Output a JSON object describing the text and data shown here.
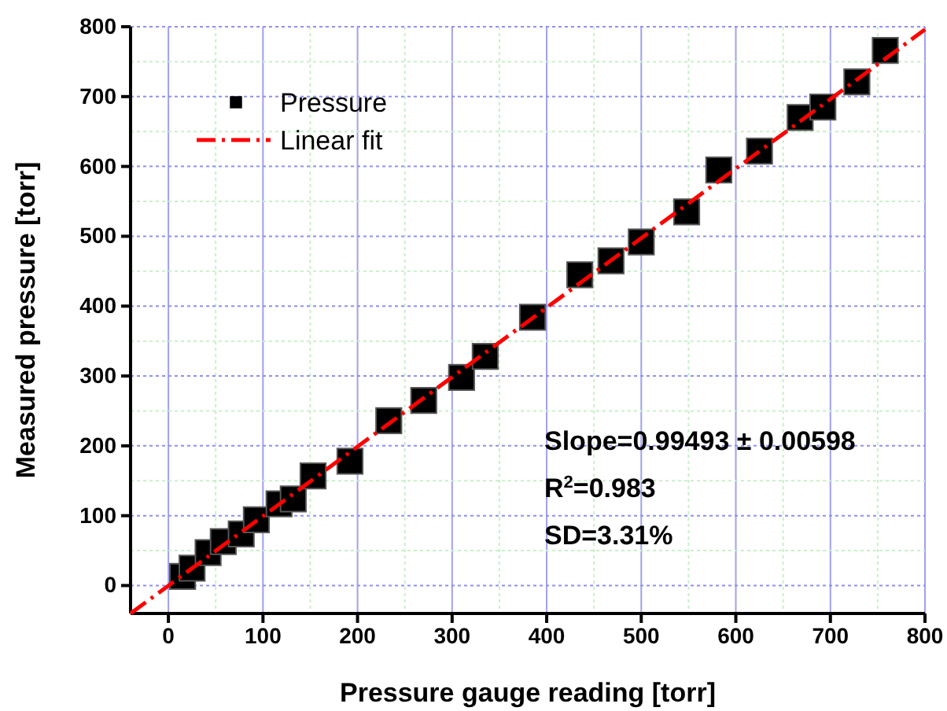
{
  "chart_data": {
    "type": "scatter",
    "xlabel": "Pressure gauge reading [torr]",
    "ylabel": "Measured pressure [torr]",
    "xlim": [
      -40,
      800
    ],
    "ylim": [
      -40,
      800
    ],
    "xticks": [
      0,
      100,
      200,
      300,
      400,
      500,
      600,
      700,
      800
    ],
    "yticks": [
      0,
      100,
      200,
      300,
      400,
      500,
      600,
      700,
      800
    ],
    "grid": true,
    "legend": "top left",
    "series": [
      {
        "name": "Pressure",
        "marker": "square",
        "color": "#000000",
        "x": [
          15,
          25,
          42,
          58,
          77,
          93,
          117,
          132,
          153,
          192,
          233,
          270,
          310,
          335,
          385,
          435,
          468,
          500,
          548,
          582,
          625,
          668,
          692,
          728,
          758
        ],
        "values": [
          13,
          25,
          47,
          63,
          74,
          94,
          117,
          124,
          157,
          178,
          236,
          265,
          298,
          328,
          384,
          445,
          465,
          492,
          535,
          595,
          622,
          670,
          685,
          721,
          766
        ]
      },
      {
        "name": "Linear fit",
        "type": "line",
        "line_style": "dashed",
        "color": "#ff0000",
        "x": [
          -40,
          800
        ],
        "values": [
          -40,
          796
        ]
      }
    ],
    "annotations": [
      "Slope=0.99493 ± 0.00598",
      "R$^{2}$=0.983",
      "SD=3.31%"
    ]
  }
}
